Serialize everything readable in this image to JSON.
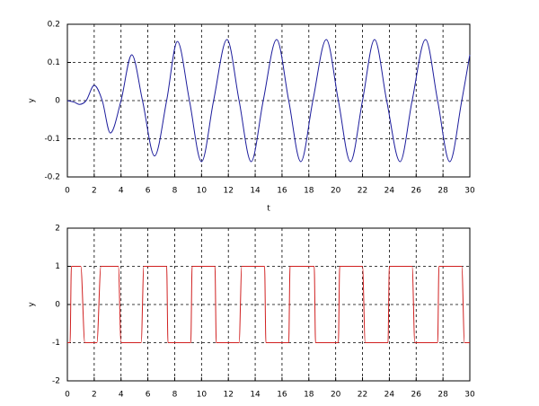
{
  "chart_data": [
    {
      "type": "line",
      "x_label": "t",
      "y_label": "y",
      "x": [
        0,
        0.5,
        0.9,
        1.4,
        2,
        2.6,
        3.2,
        4.0,
        4.8,
        5.6,
        6.5,
        7.4,
        8.2,
        9.1,
        10,
        10.9,
        11.9,
        12.8,
        13.7,
        14.6,
        15.6,
        16.5,
        17.4,
        18.3,
        19.3,
        20.2,
        21.1,
        22,
        22.9,
        23.8,
        24.8,
        25.7,
        26.7,
        27.6,
        28.5,
        29.4,
        30
      ],
      "series": [
        {
          "color": "#1c1c9c",
          "values": [
            0,
            -0.004,
            -0.01,
            0,
            0.04,
            0,
            -0.085,
            0,
            0.12,
            0,
            -0.145,
            0,
            0.155,
            0,
            -0.16,
            0,
            0.16,
            0,
            -0.16,
            0,
            0.16,
            0,
            -0.16,
            0,
            0.16,
            0,
            -0.16,
            0,
            0.16,
            0,
            -0.16,
            0,
            0.16,
            0,
            -0.16,
            0,
            0.12
          ]
        }
      ],
      "xlim": [
        0,
        30
      ],
      "xticks": [
        0,
        2,
        4,
        6,
        8,
        10,
        12,
        14,
        16,
        18,
        20,
        22,
        24,
        26,
        28,
        30
      ],
      "ylim": [
        -0.2,
        0.2
      ],
      "yticks": [
        -0.2,
        -0.1,
        0,
        0.1,
        0.2
      ],
      "grid": true
    },
    {
      "type": "line",
      "y_label": "y",
      "x": [
        0,
        0.2,
        0.3,
        1.0,
        1.3,
        2.2,
        2.5,
        3.8,
        4.0,
        5.5,
        5.7,
        7.4,
        7.5,
        9.2,
        9.3,
        11.0,
        11.1,
        12.8,
        13.0,
        14.7,
        14.8,
        16.5,
        16.6,
        18.4,
        18.5,
        20.2,
        20.3,
        22.0,
        22.2,
        23.9,
        24.0,
        25.7,
        25.9,
        27.6,
        27.7,
        29.4,
        29.6,
        30
      ],
      "series": [
        {
          "color": "#d02020",
          "values": [
            -1,
            -1,
            1,
            1,
            -1,
            -1,
            1,
            1,
            -1,
            -1,
            1,
            1,
            -1,
            -1,
            1,
            1,
            -1,
            -1,
            1,
            1,
            -1,
            -1,
            1,
            1,
            -1,
            -1,
            1,
            1,
            -1,
            -1,
            1,
            1,
            -1,
            -1,
            1,
            1,
            -1,
            -1
          ]
        }
      ],
      "xlim": [
        0,
        30
      ],
      "xticks": [
        0,
        2,
        4,
        6,
        8,
        10,
        12,
        14,
        16,
        18,
        20,
        22,
        24,
        26,
        28,
        30
      ],
      "ylim": [
        -2,
        2
      ],
      "yticks": [
        -2,
        -1,
        0,
        1,
        2
      ],
      "grid": true
    }
  ]
}
